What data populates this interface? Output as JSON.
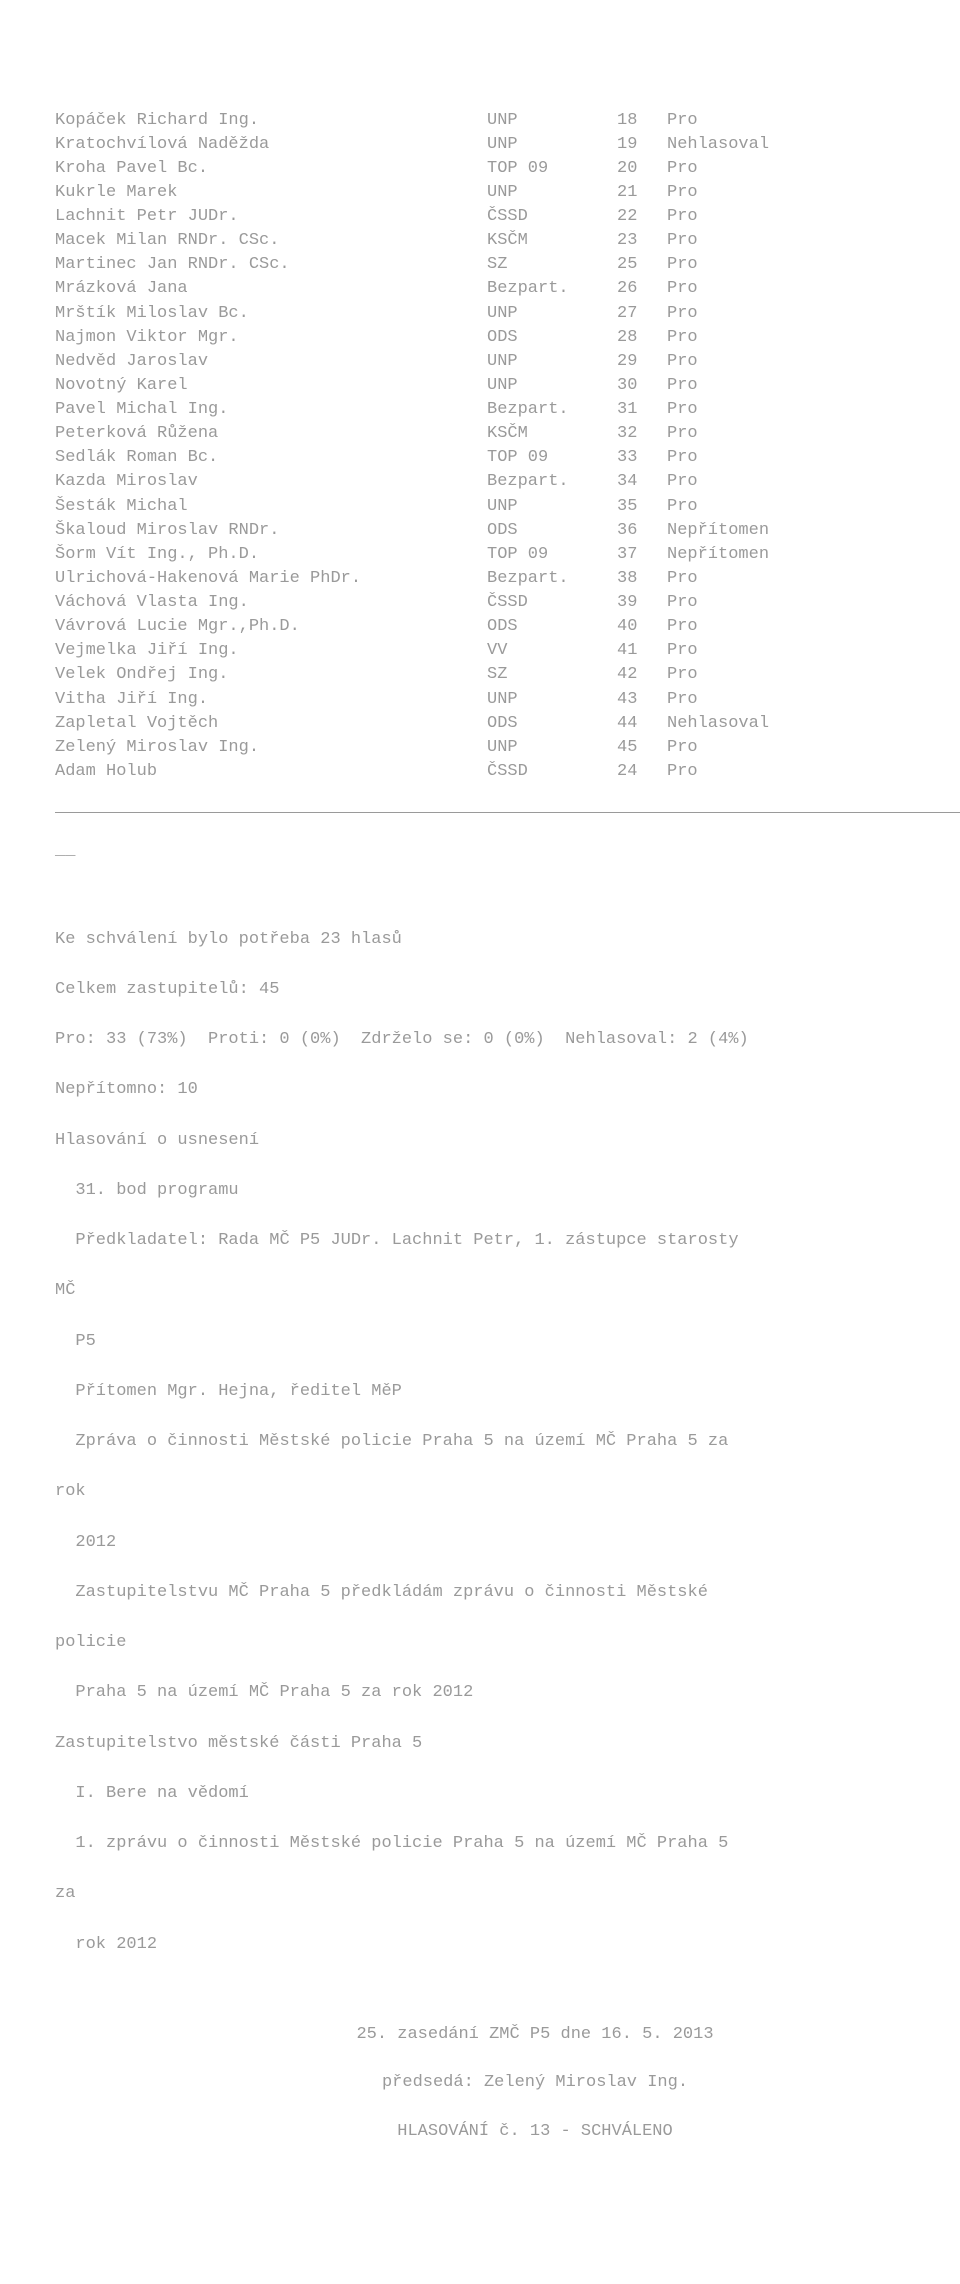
{
  "rows": [
    {
      "name": "Kopáček Richard Ing.",
      "party": "UNP",
      "num": "18",
      "vote": "Pro"
    },
    {
      "name": "Kratochvílová Naděžda",
      "party": "UNP",
      "num": "19",
      "vote": "Nehlasoval"
    },
    {
      "name": "Kroha Pavel Bc.",
      "party": "TOP 09",
      "num": "20",
      "vote": "Pro"
    },
    {
      "name": "Kukrle Marek",
      "party": "UNP",
      "num": "21",
      "vote": "Pro"
    },
    {
      "name": "Lachnit Petr JUDr.",
      "party": "ČSSD",
      "num": "22",
      "vote": "Pro"
    },
    {
      "name": "Macek Milan RNDr. CSc.",
      "party": "KSČM",
      "num": "23",
      "vote": "Pro"
    },
    {
      "name": "Martinec Jan RNDr. CSc.",
      "party": "SZ",
      "num": "25",
      "vote": "Pro"
    },
    {
      "name": "Mrázková Jana",
      "party": "Bezpart.",
      "num": "26",
      "vote": "Pro"
    },
    {
      "name": "Mrštík Miloslav Bc.",
      "party": "UNP",
      "num": "27",
      "vote": "Pro"
    },
    {
      "name": "Najmon Viktor Mgr.",
      "party": "ODS",
      "num": "28",
      "vote": "Pro"
    },
    {
      "name": "Nedvěd Jaroslav",
      "party": "UNP",
      "num": "29",
      "vote": "Pro"
    },
    {
      "name": "Novotný Karel",
      "party": "UNP",
      "num": "30",
      "vote": "Pro"
    },
    {
      "name": "Pavel Michal Ing.",
      "party": "Bezpart.",
      "num": "31",
      "vote": "Pro"
    },
    {
      "name": "Peterková Růžena",
      "party": "KSČM",
      "num": "32",
      "vote": "Pro"
    },
    {
      "name": "Sedlák Roman Bc.",
      "party": "TOP 09",
      "num": "33",
      "vote": "Pro"
    },
    {
      "name": "Kazda Miroslav",
      "party": "Bezpart.",
      "num": "34",
      "vote": "Pro"
    },
    {
      "name": "Šesták Michal",
      "party": "UNP",
      "num": "35",
      "vote": "Pro"
    },
    {
      "name": "Škaloud Miroslav RNDr.",
      "party": "ODS",
      "num": "36",
      "vote": "Nepřítomen"
    },
    {
      "name": "Šorm Vít Ing., Ph.D.",
      "party": "TOP 09",
      "num": "37",
      "vote": "Nepřítomen"
    },
    {
      "name": "Ulrichová-Hakenová Marie PhDr.",
      "party": "Bezpart.",
      "num": "38",
      "vote": "Pro"
    },
    {
      "name": "Váchová Vlasta Ing.",
      "party": "ČSSD",
      "num": "39",
      "vote": "Pro"
    },
    {
      "name": "Vávrová Lucie Mgr.,Ph.D.",
      "party": "ODS",
      "num": "40",
      "vote": "Pro"
    },
    {
      "name": "Vejmelka Jiří Ing.",
      "party": "VV",
      "num": "41",
      "vote": "Pro"
    },
    {
      "name": "Velek Ondřej Ing.",
      "party": "SZ",
      "num": "42",
      "vote": "Pro"
    },
    {
      "name": "Vitha Jiří Ing.",
      "party": "UNP",
      "num": "43",
      "vote": "Pro"
    },
    {
      "name": "Zapletal Vojtěch",
      "party": "ODS",
      "num": "44",
      "vote": "Nehlasoval"
    },
    {
      "name": "Zelený Miroslav Ing.",
      "party": "UNP",
      "num": "45",
      "vote": "Pro"
    },
    {
      "name": "Adam Holub",
      "party": "ČSSD",
      "num": "24",
      "vote": "Pro"
    }
  ],
  "dangling": "__",
  "summary": {
    "line1": "Ke schválení bylo potřeba 23 hlasů",
    "line2": "Celkem zastupitelů: 45",
    "line3": "Pro: 33 (73%)  Proti: 0 (0%)  Zdrželo se: 0 (0%)  Nehlasoval: 2 (4%)",
    "line4": "Nepřítomno: 10",
    "line5": "Hlasování o usnesení",
    "line6": "  31. bod programu",
    "line7": "  Předkladatel: Rada MČ P5 JUDr. Lachnit Petr, 1. zástupce starosty",
    "line8": "MČ",
    "line9": "  P5",
    "line10": "  Přítomen Mgr. Hejna, ředitel MěP",
    "line11": "  Zpráva o činnosti Městské policie Praha 5 na území MČ Praha 5 za",
    "line12": "rok",
    "line13": "  2012",
    "line14": "  Zastupitelstvu MČ Praha 5 předkládám zprávu o činnosti Městské",
    "line15": "policie",
    "line16": "  Praha 5 na území MČ Praha 5 za rok 2012",
    "line17": "Zastupitelstvo městské části Praha 5",
    "line18": "  I. Bere na vědomí",
    "line19": "  1. zprávu o činnosti Městské policie Praha 5 na území MČ Praha 5",
    "line20": "za",
    "line21": "  rok 2012"
  },
  "footer": {
    "l1": "25. zasedání ZMČ P5 dne 16. 5. 2013",
    "l2": "předsedá: Zelený Miroslav Ing.",
    "l3": "HLASOVÁNÍ č. 13 - SCHVÁLENO"
  }
}
